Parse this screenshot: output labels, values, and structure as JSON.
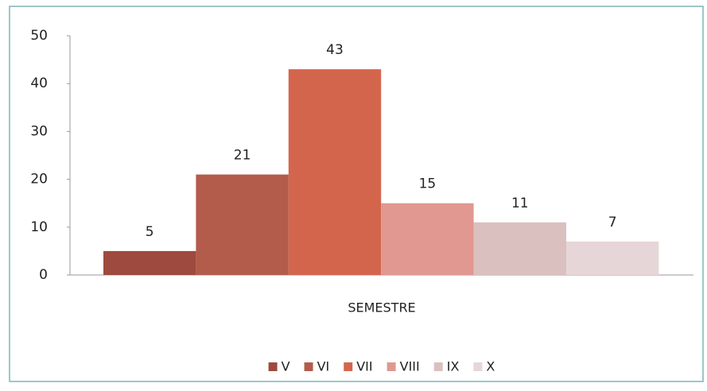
{
  "chart_data": {
    "type": "bar",
    "categories": [
      "V",
      "VI",
      "VII",
      "VIII",
      "IX",
      "X"
    ],
    "values": [
      5,
      21,
      43,
      15,
      11,
      7
    ],
    "colors": [
      "#9e4a3e",
      "#b35c4c",
      "#d4654d",
      "#e09890",
      "#dbc0c0",
      "#e6d6d8"
    ],
    "x_label": "SEMESTRE",
    "ylim": [
      0,
      50
    ],
    "yticks": [
      0,
      10,
      20,
      30,
      40,
      50
    ],
    "legend": "bottom"
  }
}
